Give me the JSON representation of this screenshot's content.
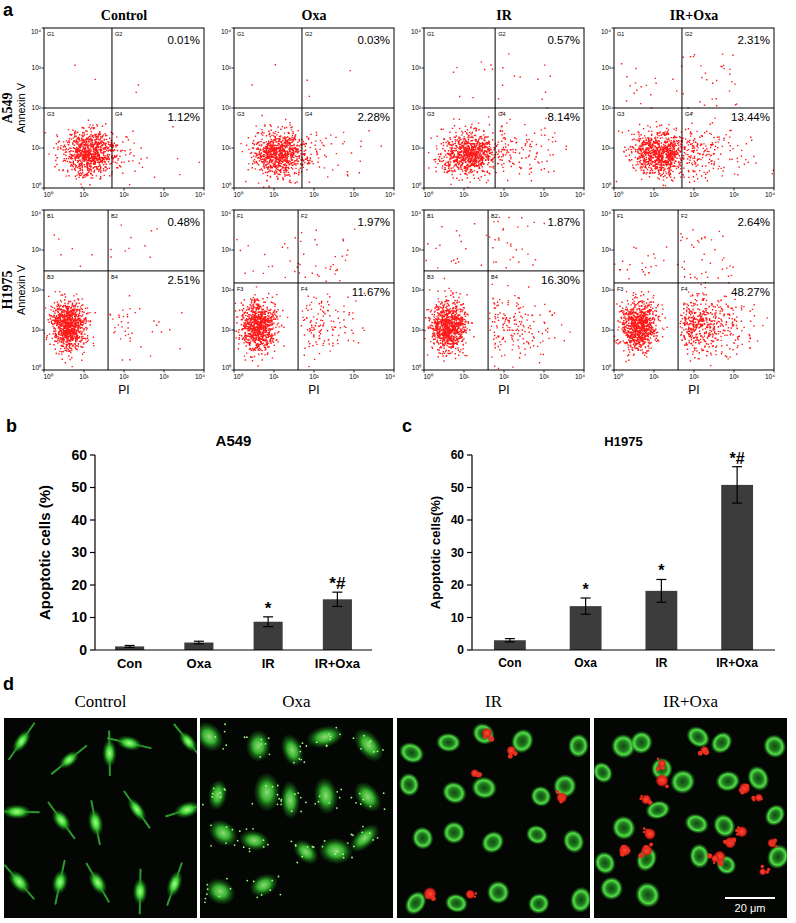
{
  "chart_data": [
    {
      "type": "scatter",
      "panel_label": "a",
      "columns": [
        "Control",
        "Oxa",
        "IR",
        "IR+Oxa"
      ],
      "rows": [
        "A549",
        "H1975"
      ],
      "x_label": "PI",
      "y_label": "Annexin V",
      "log": true,
      "xlim": [
        1,
        10000
      ],
      "ylim": [
        1,
        10000
      ],
      "xticks": [
        {
          "value": 1,
          "label": "10⁰"
        },
        {
          "value": 10,
          "label": "10¹"
        },
        {
          "value": 100,
          "label": "10²"
        },
        {
          "value": 1000,
          "label": "10³"
        },
        {
          "value": 10000,
          "label": "10⁴"
        }
      ],
      "yticks": [
        {
          "value": 1,
          "label": "10⁰"
        },
        {
          "value": 10,
          "label": "10¹"
        },
        {
          "value": 100,
          "label": "10²"
        },
        {
          "value": 1000,
          "label": "10³"
        },
        {
          "value": 10000,
          "label": "10⁴"
        }
      ],
      "color": "#ff1a1a",
      "panels": [
        [
          {
            "quadrants": [
              "G1",
              "G2",
              "G3",
              "G4"
            ],
            "gate_x": 50,
            "gate_y": 100,
            "values": [
              0.01,
              1.12
            ],
            "value_labels": [
              "0.01%",
              "1.12%"
            ]
          },
          {
            "quadrants": [
              "G1",
              "G2",
              "G3",
              "G4"
            ],
            "gate_x": 50,
            "gate_y": 100,
            "values": [
              0.03,
              2.28
            ],
            "value_labels": [
              "0.03%",
              "2.28%"
            ]
          },
          {
            "quadrants": [
              "G1",
              "G2",
              "G3",
              "G4"
            ],
            "gate_x": 60,
            "gate_y": 100,
            "values": [
              0.57,
              8.14
            ],
            "value_labels": [
              "0.57%",
              "8.14%"
            ]
          },
          {
            "quadrants": [
              "G1",
              "G2",
              "G3",
              "G4"
            ],
            "gate_x": 50,
            "gate_y": 100,
            "values": [
              2.31,
              13.44
            ],
            "value_labels": [
              "2.31%",
              "13.44%"
            ]
          }
        ],
        [
          {
            "quadrants": [
              "B1",
              "B2",
              "B3",
              "B4"
            ],
            "gate_x": 40,
            "gate_y": 300,
            "values": [
              0.48,
              2.51
            ],
            "value_labels": [
              "0.48%",
              "2.51%"
            ]
          },
          {
            "quadrants": [
              "F1",
              "F2",
              "F3",
              "F4"
            ],
            "gate_x": 40,
            "gate_y": 150,
            "values": [
              1.97,
              11.67
            ],
            "value_labels": [
              "1.97%",
              "11.67%"
            ]
          },
          {
            "quadrants": [
              "B1",
              "B2",
              "B3",
              "B4"
            ],
            "gate_x": 40,
            "gate_y": 300,
            "values": [
              1.87,
              16.3
            ],
            "value_labels": [
              "1.87%",
              "16.30%"
            ]
          },
          {
            "quadrants": [
              "F1",
              "F2",
              "F3",
              "F4"
            ],
            "gate_x": 40,
            "gate_y": 150,
            "values": [
              2.64,
              48.27
            ],
            "value_labels": [
              "2.64%",
              "48.27%"
            ]
          }
        ]
      ]
    },
    {
      "type": "bar",
      "panel_label": "b",
      "title": "A549",
      "y_label": "Apoptotic cells (%)",
      "categories": [
        "Con",
        "Oxa",
        "IR",
        "IR+Oxa"
      ],
      "values": [
        1.1,
        2.3,
        8.7,
        15.6
      ],
      "errors": [
        0.3,
        0.4,
        1.5,
        2.2
      ],
      "annotations": [
        null,
        null,
        "*",
        "*#"
      ],
      "color": "#3c3c3c",
      "ylim": [
        0,
        60
      ],
      "yticks": [
        0,
        10,
        20,
        30,
        40,
        50,
        60
      ]
    },
    {
      "type": "bar",
      "panel_label": "c",
      "title": "H1975",
      "y_label": "Apoptotic cells(%)",
      "categories": [
        "Con",
        "Oxa",
        "IR",
        "IR+Oxa"
      ],
      "values": [
        3.0,
        13.5,
        18.2,
        50.8
      ],
      "errors": [
        0.5,
        2.5,
        3.5,
        5.6
      ],
      "annotations": [
        null,
        "*",
        "*",
        "*#"
      ],
      "color": "#3c3c3c",
      "ylim": [
        0,
        60
      ],
      "yticks": [
        0,
        10,
        20,
        30,
        40,
        50,
        60
      ]
    }
  ],
  "microscopy": {
    "panel_label": "d",
    "titles": [
      "Control",
      "Oxa",
      "IR",
      "IR+Oxa"
    ],
    "scale_bar": "20 μm"
  }
}
